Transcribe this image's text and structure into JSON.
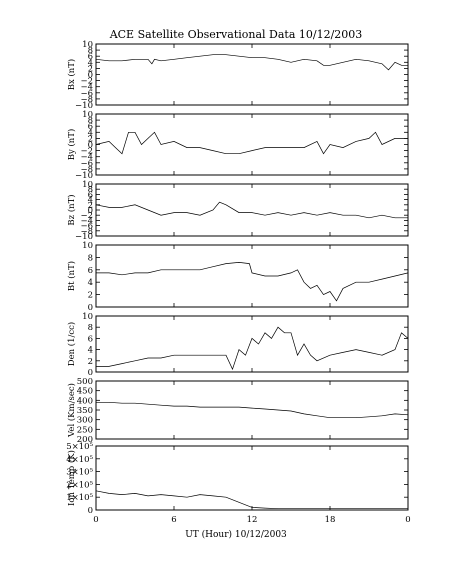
{
  "chart_data": {
    "type": "line",
    "title": "ACE Satellite Observational Data   10/12/2003",
    "xlabel": "UT (Hour)   10/12/2003",
    "x_ticks": [
      "0",
      "6",
      "12",
      "18",
      "0"
    ],
    "xlim": [
      0,
      24
    ],
    "panels": [
      {
        "ylabel": "Bx (nT)",
        "ylim": [
          -10,
          10
        ],
        "y_ticks": [
          -10,
          -8,
          -6,
          -4,
          -2,
          0,
          2,
          4,
          6,
          8,
          10
        ],
        "y_tick_labels": [
          "−10",
          "−8",
          "−6",
          "−4",
          "−2",
          "0",
          "2",
          "4",
          "6",
          "8",
          "10"
        ],
        "series": [
          {
            "x": [
              0,
              1,
              2,
              3,
              4,
              4.3,
              4.5,
              5,
              6,
              7,
              8,
              9,
              10,
              11,
              12,
              13,
              14,
              15,
              16,
              17,
              17.5,
              18,
              19,
              20,
              21,
              22,
              22.5,
              23,
              23.5,
              24
            ],
            "y": [
              5,
              4.5,
              4.5,
              5,
              5,
              3.5,
              5,
              4.5,
              5,
              5.5,
              6,
              6.5,
              6.5,
              6,
              5.5,
              5.5,
              5,
              4,
              5,
              4.5,
              3,
              3,
              4,
              5,
              4.5,
              3.5,
              1.5,
              4,
              3,
              3
            ]
          }
        ]
      },
      {
        "ylabel": "By (nT)",
        "ylim": [
          -10,
          10
        ],
        "y_ticks": [
          -10,
          -8,
          -6,
          -4,
          -2,
          0,
          2,
          4,
          6,
          8,
          10
        ],
        "y_tick_labels": [
          "−10",
          "−8",
          "−6",
          "−4",
          "−2",
          "0",
          "2",
          "4",
          "6",
          "8",
          "10"
        ],
        "series": [
          {
            "x": [
              0,
              1,
              1.5,
              2,
              2.5,
              3,
              3.5,
              4,
              4.5,
              5,
              6,
              7,
              8,
              9,
              10,
              11,
              12,
              13,
              14,
              15,
              16,
              17,
              17.5,
              18,
              19,
              20,
              21,
              21.5,
              22,
              23,
              24
            ],
            "y": [
              0,
              1,
              -1,
              -3,
              4,
              4,
              0,
              2,
              4,
              0,
              1,
              -1,
              -1,
              -2,
              -3,
              -3,
              -2,
              -1,
              -1,
              -1,
              -1,
              1,
              -3,
              0,
              -1,
              1,
              2,
              4,
              0,
              2,
              2
            ]
          }
        ]
      },
      {
        "ylabel": "Bz (nT)",
        "ylim": [
          -10,
          10
        ],
        "y_ticks": [
          -10,
          -8,
          -6,
          -4,
          -2,
          0,
          2,
          4,
          6,
          8,
          10
        ],
        "y_tick_labels": [
          "−10",
          "−8",
          "−6",
          "−4",
          "−2",
          "0",
          "2",
          "4",
          "6",
          "8",
          "10"
        ],
        "series": [
          {
            "x": [
              0,
              1,
              2,
              3,
              4,
              5,
              6,
              7,
              8,
              9,
              9.5,
              10,
              11,
              12,
              13,
              14,
              15,
              16,
              17,
              18,
              19,
              20,
              21,
              22,
              23,
              24
            ],
            "y": [
              2,
              1,
              1,
              2,
              0,
              -2,
              -1,
              -1,
              -2,
              0,
              3,
              2,
              -1,
              -1,
              -2,
              -1,
              -2,
              -1,
              -2,
              -1,
              -2,
              -2,
              -3,
              -2,
              -3,
              -3
            ]
          }
        ]
      },
      {
        "ylabel": "Bt (nT)",
        "ylim": [
          0,
          10
        ],
        "y_ticks": [
          0,
          2,
          4,
          6,
          8,
          10
        ],
        "y_tick_labels": [
          "0",
          "2",
          "4",
          "6",
          "8",
          "10"
        ],
        "series": [
          {
            "x": [
              0,
              1,
              2,
              3,
              4,
              5,
              6,
              7,
              8,
              9,
              10,
              11,
              11.8,
              12,
              13,
              14,
              15,
              15.5,
              16,
              16.5,
              17,
              17.5,
              18,
              18.5,
              19,
              20,
              21,
              22,
              23,
              24
            ],
            "y": [
              5.5,
              5.5,
              5.2,
              5.5,
              5.5,
              6,
              6,
              6,
              6,
              6.5,
              7,
              7.2,
              7,
              5.5,
              5,
              5,
              5.5,
              6,
              4,
              3,
              3.5,
              2,
              2.5,
              1,
              3,
              4,
              4,
              4.5,
              5,
              5.5
            ]
          }
        ]
      },
      {
        "ylabel": "Den (1/cc)",
        "ylim": [
          0,
          10
        ],
        "y_ticks": [
          0,
          2,
          4,
          6,
          8,
          10
        ],
        "y_tick_labels": [
          "0",
          "2",
          "4",
          "6",
          "8",
          "10"
        ],
        "series": [
          {
            "x": [
              0,
              1,
              2,
              3,
              4,
              5,
              6,
              7,
              8,
              9,
              10,
              10.5,
              11,
              11.5,
              12,
              12.5,
              13,
              13.5,
              14,
              14.5,
              15,
              15.5,
              16,
              16.5,
              17,
              18,
              19,
              20,
              21,
              22,
              23,
              23.5,
              24
            ],
            "y": [
              1,
              1,
              1.5,
              2,
              2.5,
              2.5,
              3,
              3,
              3,
              3,
              3,
              0.5,
              4,
              3,
              6,
              5,
              7,
              6,
              8,
              7,
              7,
              3,
              5,
              3,
              2,
              3,
              3.5,
              4,
              3.5,
              3,
              4,
              7,
              6
            ]
          }
        ]
      },
      {
        "ylabel": "Vel (Km/sec)",
        "ylim": [
          200,
          500
        ],
        "y_ticks": [
          200,
          250,
          300,
          350,
          400,
          450,
          500
        ],
        "y_tick_labels": [
          "200",
          "250",
          "300",
          "350",
          "400",
          "450",
          "500"
        ],
        "series": [
          {
            "x": [
              0,
              1,
              2,
              3,
              4,
              5,
              6,
              7,
              8,
              9,
              10,
              11,
              12,
              13,
              14,
              15,
              16,
              17,
              18,
              19,
              20,
              21,
              22,
              23,
              24
            ],
            "y": [
              390,
              390,
              385,
              385,
              380,
              375,
              370,
              370,
              365,
              365,
              365,
              365,
              360,
              355,
              350,
              345,
              330,
              320,
              310,
              310,
              310,
              315,
              320,
              330,
              325
            ]
          }
        ]
      },
      {
        "ylabel": "Ion Temp (K)",
        "ylim": [
          0,
          500000
        ],
        "y_ticks": [
          0,
          100000,
          200000,
          300000,
          400000,
          500000
        ],
        "y_tick_labels": [
          "0",
          "1×10⁵",
          "2×10⁵",
          "3×10⁵",
          "4×10⁵",
          "5×10⁵"
        ],
        "series": [
          {
            "x": [
              0,
              1,
              2,
              3,
              4,
              5,
              6,
              7,
              8,
              9,
              10,
              11,
              12,
              13,
              14,
              15,
              16,
              17,
              18,
              19,
              20,
              21,
              22,
              23,
              24
            ],
            "y": [
              150000,
              130000,
              120000,
              130000,
              110000,
              120000,
              110000,
              100000,
              120000,
              110000,
              100000,
              60000,
              20000,
              15000,
              10000,
              10000,
              10000,
              10000,
              10000,
              10000,
              10000,
              10000,
              10000,
              10000,
              10000
            ]
          }
        ]
      }
    ]
  }
}
